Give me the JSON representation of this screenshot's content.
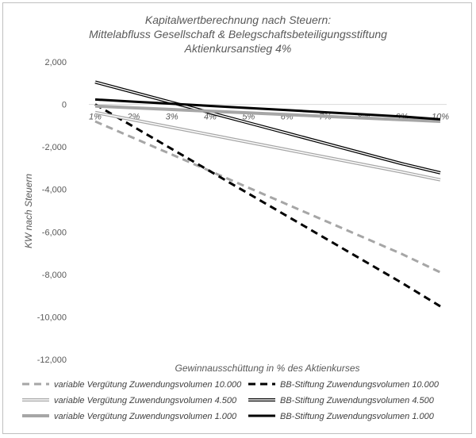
{
  "chart_data": {
    "type": "line",
    "title": [
      "Kapitalwertberechnung nach Steuern:",
      "Mittelabfluss Gesellschaft & Belegschaftsbeteiligungsstiftung",
      "Aktienkursanstieg 4%"
    ],
    "xlabel": "Gewinnausschüttung in % des Aktienkurses",
    "ylabel": "KW nach Steuern",
    "categories": [
      "1%",
      "2%",
      "3%",
      "4%",
      "5%",
      "6%",
      "7%",
      "8%",
      "9%",
      "10%"
    ],
    "ylim": [
      -12000,
      2000
    ],
    "yticks": [
      2000,
      0,
      -2000,
      -4000,
      -6000,
      -8000,
      -10000,
      -12000
    ],
    "ytick_labels": [
      "2,000",
      "0",
      "-2,000",
      "-4,000",
      "-6,000",
      "-8,000",
      "-10,000",
      "-12,000"
    ],
    "grid": false,
    "legend_position": "bottom",
    "series": [
      {
        "name": "variable Vergütung Zuwendungsvolumen 10.000",
        "style": "dashed",
        "color": "#a6a6a6",
        "width": 3,
        "values": [
          -800,
          -1580,
          -2360,
          -3140,
          -3920,
          -4700,
          -5480,
          -6260,
          -7040,
          -7900
        ]
      },
      {
        "name": "BB-Stiftung Zuwendungsvolumen 10.000",
        "style": "dashed",
        "color": "#000000",
        "width": 3,
        "values": [
          0,
          -1050,
          -2100,
          -3150,
          -4200,
          -5250,
          -6300,
          -7350,
          -8400,
          -9500
        ]
      },
      {
        "name": "variable Vergütung Zuwendungsvolumen 4.500",
        "style": "double",
        "color": "#a6a6a6",
        "width": 4,
        "values": [
          -380,
          -730,
          -1080,
          -1430,
          -1780,
          -2130,
          -2480,
          -2830,
          -3180,
          -3550
        ]
      },
      {
        "name": "BB-Stiftung Zuwendungsvolumen 4.500",
        "style": "double",
        "color": "#000000",
        "width": 4,
        "values": [
          1050,
          570,
          90,
          -390,
          -870,
          -1350,
          -1830,
          -2310,
          -2790,
          -3220
        ]
      },
      {
        "name": "variable Vergütung Zuwendungsvolumen 1.000",
        "style": "solid",
        "color": "#a6a6a6",
        "width": 4,
        "values": [
          -80,
          -160,
          -240,
          -320,
          -400,
          -480,
          -560,
          -640,
          -720,
          -800
        ]
      },
      {
        "name": "BB-Stiftung Zuwendungsvolumen 1.000",
        "style": "solid",
        "color": "#000000",
        "width": 3,
        "values": [
          230,
          130,
          30,
          -70,
          -170,
          -270,
          -370,
          -470,
          -570,
          -700
        ]
      }
    ]
  }
}
